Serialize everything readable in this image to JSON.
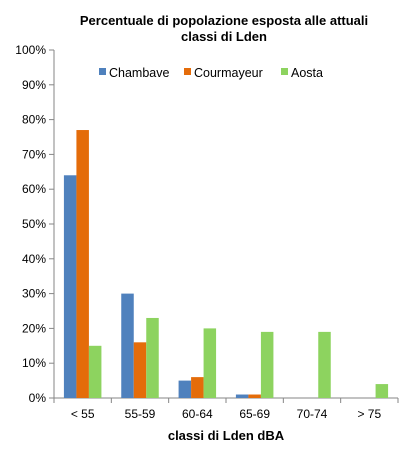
{
  "chart_data": {
    "type": "bar",
    "title_lines": [
      "Percentuale di popolazione esposta  alle attuali",
      "classi  di Lden"
    ],
    "xlabel": "classi  di Lden  dBA",
    "ylabel": "",
    "categories": [
      "< 55",
      "55-59",
      "60-64",
      "65-69",
      "70-74",
      "> 75"
    ],
    "series": [
      {
        "name": "Chambave",
        "color": "#4f81bd",
        "values": [
          64,
          30,
          5,
          1,
          0,
          0
        ]
      },
      {
        "name": "Courmayeur",
        "color": "#e46c0a",
        "values": [
          77,
          16,
          6,
          1,
          0,
          0
        ]
      },
      {
        "name": "Aosta",
        "color": "#8dd35f",
        "values": [
          15,
          23,
          20,
          19,
          19,
          4
        ]
      }
    ],
    "ylim": [
      0,
      100
    ],
    "yticks": [
      0,
      10,
      20,
      30,
      40,
      50,
      60,
      70,
      80,
      90,
      100
    ],
    "ytick_suffix": "%",
    "legend_position": "top-right",
    "grid": false
  }
}
